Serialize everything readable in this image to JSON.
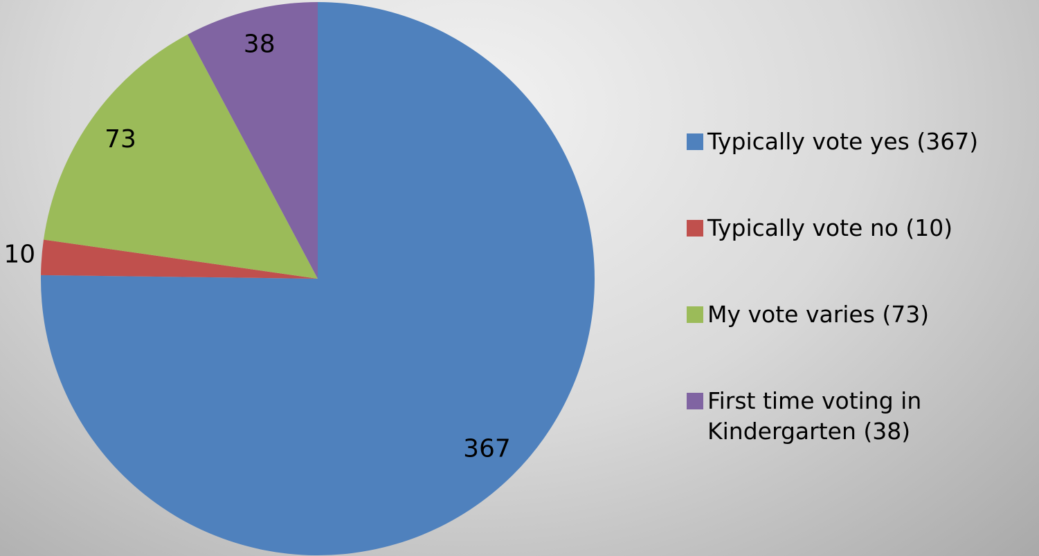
{
  "chart_data": {
    "type": "pie",
    "categories": [
      "Typically vote yes (367)",
      "Typically vote no (10)",
      "My vote varies (73)",
      "First time voting in Kindergarten (38)"
    ],
    "values": [
      367,
      10,
      73,
      38
    ],
    "colors": [
      "#4f81bd",
      "#c0504d",
      "#9bbb59",
      "#8064a2"
    ],
    "legend": "right"
  }
}
